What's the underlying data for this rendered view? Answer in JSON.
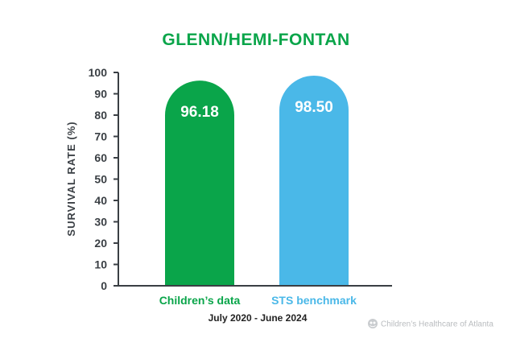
{
  "chart_data": {
    "type": "bar",
    "title": "GLENN/HEMI-FONTAN",
    "xlabel": "July 2020 - June 2024",
    "ylabel": "SURVIVAL RATE (%)",
    "ylim": [
      0,
      100
    ],
    "yticks": [
      0,
      10,
      20,
      30,
      40,
      50,
      60,
      70,
      80,
      90,
      100
    ],
    "ytick_labels": [
      "0",
      "10",
      "20",
      "30",
      "40",
      "50",
      "60",
      "70",
      "80",
      "90",
      "100"
    ],
    "categories": [
      "Children’s data",
      "STS benchmark"
    ],
    "values": [
      96.18,
      98.5
    ],
    "value_labels": [
      "96.18",
      "98.50"
    ],
    "grid": false,
    "legend": "none"
  },
  "colors": {
    "title": "#0aa54a",
    "bars": [
      "#0aa54a",
      "#4ab8e8"
    ],
    "axis": "#3a3f44"
  },
  "footer": {
    "brand": "Children’s Healthcare of Atlanta",
    "brand_icon": "logo-icon"
  }
}
